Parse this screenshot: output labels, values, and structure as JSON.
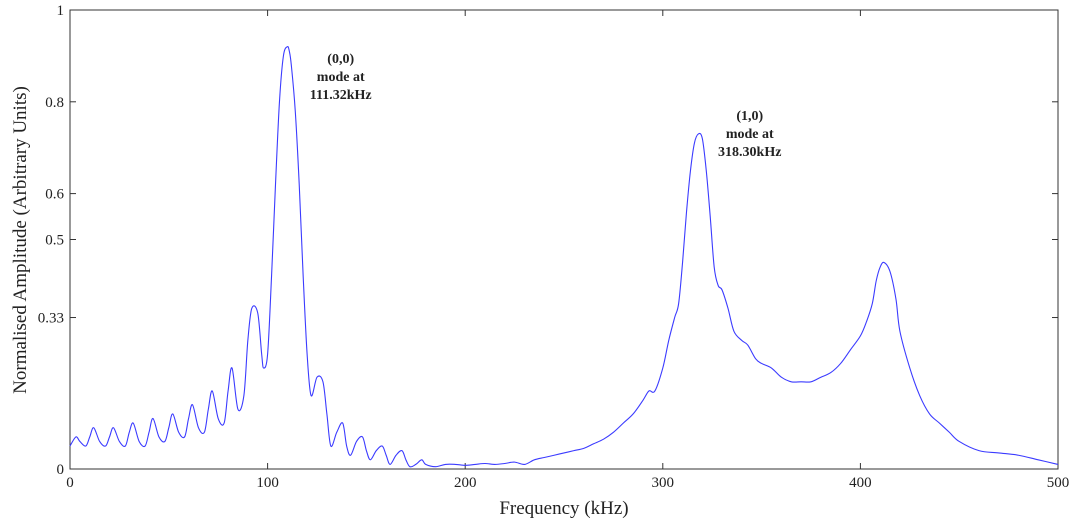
{
  "chart_data": {
    "type": "line",
    "title": "",
    "xlabel": "Frequency (kHz)",
    "ylabel": "Normalised Amplitude (Arbitrary Units)",
    "xlim": [
      0,
      500
    ],
    "ylim": [
      0,
      1
    ],
    "xticks": [
      0,
      100,
      200,
      300,
      400,
      500
    ],
    "xtick_labels": [
      "0",
      "100",
      "200",
      "300",
      "400",
      "500"
    ],
    "yticks": [
      0,
      0.33,
      0.5,
      0.6,
      0.8,
      1
    ],
    "ytick_labels": [
      "0",
      "0.33",
      "0.5",
      "0.6",
      "0.8",
      "1"
    ],
    "grid": false,
    "line_color": "#3b3bff",
    "series": [
      {
        "x": [
          0,
          3,
          5,
          8,
          10,
          12,
          15,
          18,
          20,
          22,
          25,
          28,
          30,
          32,
          35,
          38,
          40,
          42,
          45,
          48,
          50,
          52,
          55,
          58,
          60,
          62,
          65,
          68,
          70,
          72,
          75,
          78,
          80,
          82,
          85,
          88,
          90,
          92,
          95,
          97,
          98,
          100,
          102,
          104,
          106,
          108,
          110,
          111,
          112,
          114,
          116,
          118,
          120,
          122,
          125,
          128,
          130,
          132,
          135,
          138,
          140,
          142,
          145,
          148,
          150,
          152,
          155,
          158,
          160,
          162,
          165,
          168,
          170,
          172,
          175,
          178,
          180,
          185,
          190,
          195,
          200,
          205,
          210,
          215,
          220,
          225,
          230,
          235,
          240,
          245,
          250,
          255,
          260,
          265,
          270,
          275,
          280,
          285,
          290,
          293,
          296,
          300,
          303,
          306,
          308,
          310,
          312,
          314,
          316,
          318,
          320,
          322,
          324,
          326,
          328,
          330,
          333,
          336,
          340,
          343,
          347,
          350,
          355,
          360,
          365,
          370,
          375,
          380,
          385,
          390,
          395,
          400,
          403,
          406,
          408,
          410,
          412,
          415,
          418,
          420,
          425,
          430,
          435,
          440,
          445,
          450,
          460,
          470,
          480,
          490,
          500
        ],
        "y": [
          0.05,
          0.07,
          0.06,
          0.05,
          0.07,
          0.09,
          0.06,
          0.05,
          0.07,
          0.09,
          0.06,
          0.05,
          0.08,
          0.1,
          0.06,
          0.05,
          0.08,
          0.11,
          0.07,
          0.06,
          0.09,
          0.12,
          0.08,
          0.07,
          0.11,
          0.14,
          0.09,
          0.08,
          0.13,
          0.17,
          0.11,
          0.1,
          0.17,
          0.22,
          0.13,
          0.16,
          0.28,
          0.35,
          0.34,
          0.25,
          0.22,
          0.25,
          0.42,
          0.62,
          0.8,
          0.9,
          0.92,
          0.91,
          0.88,
          0.78,
          0.62,
          0.42,
          0.25,
          0.16,
          0.2,
          0.19,
          0.12,
          0.05,
          0.08,
          0.1,
          0.05,
          0.03,
          0.06,
          0.07,
          0.04,
          0.02,
          0.04,
          0.05,
          0.03,
          0.01,
          0.03,
          0.04,
          0.02,
          0.005,
          0.01,
          0.02,
          0.01,
          0.005,
          0.01,
          0.01,
          0.008,
          0.01,
          0.012,
          0.01,
          0.012,
          0.015,
          0.01,
          0.02,
          0.025,
          0.03,
          0.035,
          0.04,
          0.045,
          0.055,
          0.065,
          0.08,
          0.1,
          0.12,
          0.15,
          0.17,
          0.17,
          0.22,
          0.28,
          0.33,
          0.36,
          0.45,
          0.56,
          0.65,
          0.71,
          0.73,
          0.72,
          0.65,
          0.55,
          0.44,
          0.4,
          0.39,
          0.35,
          0.3,
          0.28,
          0.27,
          0.24,
          0.23,
          0.22,
          0.2,
          0.19,
          0.19,
          0.19,
          0.2,
          0.21,
          0.23,
          0.26,
          0.29,
          0.32,
          0.36,
          0.41,
          0.44,
          0.45,
          0.43,
          0.37,
          0.3,
          0.22,
          0.16,
          0.12,
          0.1,
          0.08,
          0.06,
          0.04,
          0.035,
          0.03,
          0.02,
          0.01
        ]
      }
    ],
    "annotations": [
      {
        "lines": [
          "(0,0)",
          "mode at",
          "111.32kHz"
        ],
        "x": 137,
        "y": 0.885
      },
      {
        "lines": [
          "(1,0)",
          "mode at",
          "318.30kHz"
        ],
        "x": 344,
        "y": 0.76
      }
    ]
  }
}
